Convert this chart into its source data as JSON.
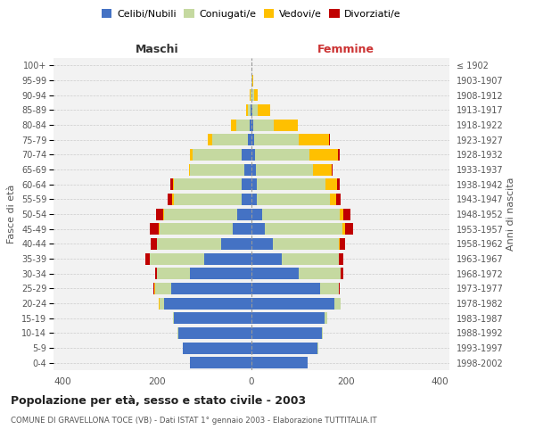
{
  "age_groups": [
    "0-4",
    "5-9",
    "10-14",
    "15-19",
    "20-24",
    "25-29",
    "30-34",
    "35-39",
    "40-44",
    "45-49",
    "50-54",
    "55-59",
    "60-64",
    "65-69",
    "70-74",
    "75-79",
    "80-84",
    "85-89",
    "90-94",
    "95-99",
    "100+"
  ],
  "birth_years": [
    "1998-2002",
    "1993-1997",
    "1988-1992",
    "1983-1987",
    "1978-1982",
    "1973-1977",
    "1968-1972",
    "1963-1967",
    "1958-1962",
    "1953-1957",
    "1948-1952",
    "1943-1947",
    "1938-1942",
    "1933-1937",
    "1928-1932",
    "1923-1927",
    "1918-1922",
    "1913-1917",
    "1908-1912",
    "1903-1907",
    "≤ 1902"
  ],
  "males": {
    "celibi": [
      130,
      145,
      155,
      165,
      185,
      170,
      130,
      100,
      65,
      40,
      30,
      20,
      20,
      15,
      20,
      8,
      3,
      2,
      0,
      0,
      0
    ],
    "coniugati": [
      0,
      1,
      2,
      2,
      10,
      35,
      70,
      115,
      135,
      155,
      155,
      145,
      145,
      115,
      105,
      75,
      30,
      5,
      2,
      0,
      0
    ],
    "vedovi": [
      0,
      0,
      0,
      0,
      1,
      1,
      0,
      0,
      1,
      2,
      2,
      3,
      2,
      2,
      5,
      10,
      10,
      5,
      2,
      0,
      0
    ],
    "divorziati": [
      0,
      0,
      0,
      0,
      1,
      2,
      5,
      10,
      12,
      18,
      15,
      10,
      5,
      0,
      0,
      0,
      0,
      0,
      0,
      0,
      0
    ]
  },
  "females": {
    "nubili": [
      120,
      140,
      150,
      155,
      175,
      145,
      100,
      65,
      45,
      28,
      22,
      12,
      12,
      10,
      8,
      5,
      3,
      2,
      0,
      0,
      0
    ],
    "coniugate": [
      0,
      1,
      2,
      5,
      15,
      40,
      90,
      120,
      140,
      165,
      165,
      155,
      145,
      120,
      115,
      95,
      45,
      12,
      5,
      2,
      0
    ],
    "vedove": [
      0,
      0,
      0,
      0,
      0,
      0,
      0,
      1,
      2,
      5,
      8,
      12,
      25,
      40,
      60,
      65,
      50,
      25,
      8,
      2,
      0
    ],
    "divorziate": [
      0,
      0,
      0,
      0,
      0,
      2,
      5,
      8,
      12,
      18,
      15,
      10,
      5,
      2,
      5,
      2,
      0,
      0,
      0,
      0,
      0
    ]
  },
  "colors": {
    "celibi": "#4472c4",
    "coniugati": "#c5d9a0",
    "vedovi": "#ffc000",
    "divorziati": "#c00000"
  },
  "xlim": 420,
  "title": "Popolazione per età, sesso e stato civile - 2003",
  "subtitle": "COMUNE DI GRAVELLONA TOCE (VB) - Dati ISTAT 1° gennaio 2003 - Elaborazione TUTTITALIA.IT",
  "xlabel_left": "Maschi",
  "xlabel_right": "Femmine",
  "ylabel_left": "Fasce di età",
  "ylabel_right": "Anni di nascita",
  "legend_labels": [
    "Celibi/Nubili",
    "Coniugati/e",
    "Vedovi/e",
    "Divorziati/e"
  ],
  "bg_color": "#ffffff",
  "grid_color": "#cccccc"
}
